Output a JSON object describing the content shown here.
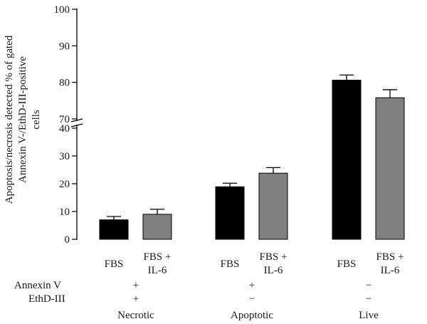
{
  "chart_data": {
    "type": "bar",
    "ylabel_lines": [
      "Apoptosis/necrosis detected % of gated",
      "Annexin V-/EthD-III-positive",
      "cells"
    ],
    "axis_break": {
      "lower_range": [
        0,
        40
      ],
      "upper_range": [
        70,
        100
      ]
    },
    "yticks_lower": [
      0,
      10,
      20,
      30,
      40
    ],
    "yticks_upper": [
      70,
      80,
      90,
      100
    ],
    "groups": [
      {
        "name": "Necrotic",
        "annexin": "+",
        "ethd": "+",
        "bars": [
          {
            "label": "FBS",
            "value": 7.0,
            "error": 1.2
          },
          {
            "label_lines": [
              "FBS +",
              "IL-6"
            ],
            "value": 9.0,
            "error": 1.8
          }
        ]
      },
      {
        "name": "Apoptotic",
        "annexin": "+",
        "ethd": "−",
        "bars": [
          {
            "label": "FBS",
            "value": 18.9,
            "error": 1.3
          },
          {
            "label_lines": [
              "FBS +",
              "IL-6"
            ],
            "value": 23.8,
            "error": 2.0
          }
        ]
      },
      {
        "name": "Live",
        "annexin": "−",
        "ethd": "−",
        "bars": [
          {
            "label": "FBS",
            "value": 80.6,
            "error": 1.4
          },
          {
            "label_lines": [
              "FBS +",
              "IL-6"
            ],
            "value": 75.8,
            "error": 2.2
          }
        ]
      }
    ],
    "row_labels": {
      "annexin": "Annexin V",
      "ethd": "EthD-III"
    },
    "colors": {
      "FBS": "#000000",
      "FBS + IL-6": "#808080"
    }
  }
}
